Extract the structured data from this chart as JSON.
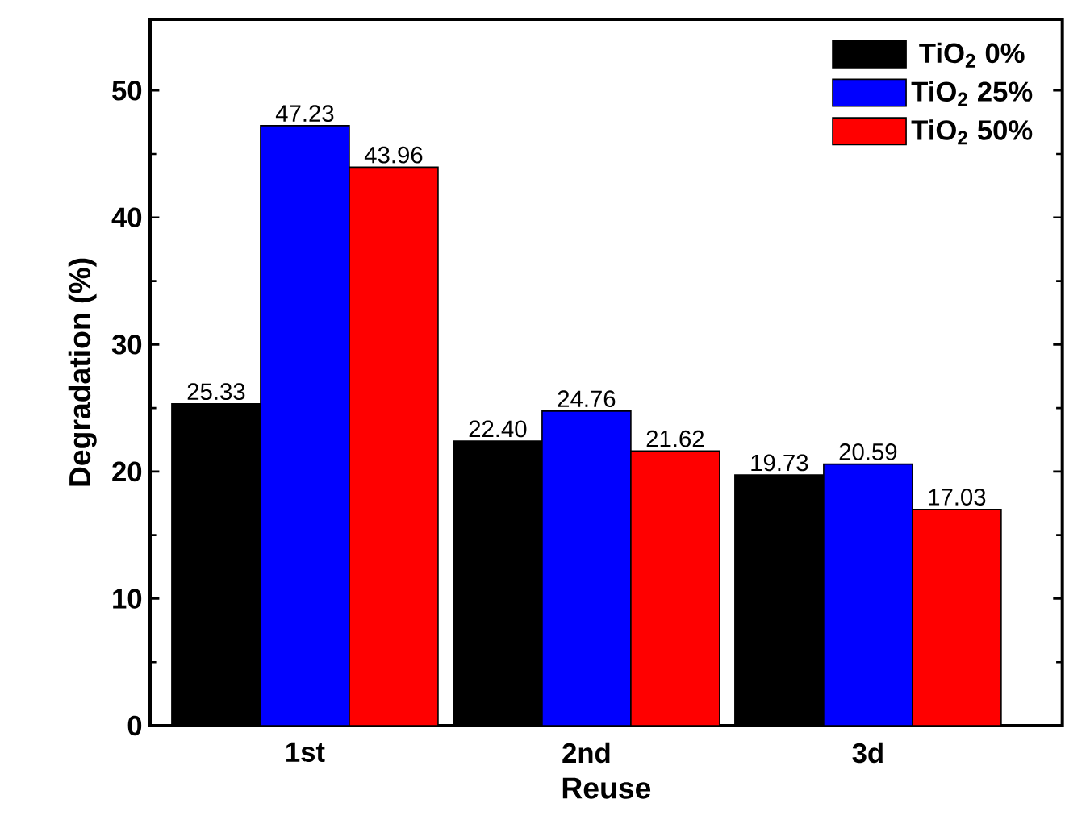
{
  "chart_data": {
    "type": "bar",
    "xlabel": "Reuse",
    "ylabel": "Degradation (%)",
    "categories": [
      "1st",
      "2nd",
      "3d"
    ],
    "series": [
      {
        "name": "TiO$_{2}$ 0%",
        "color": "#000000",
        "values": [
          25.33,
          22.4,
          19.73
        ],
        "value_labels": [
          "25.33",
          "22.40",
          "19.73"
        ]
      },
      {
        "name": "TiO$_{2}$ 25%",
        "color": "#0000ff",
        "values": [
          47.23,
          24.76,
          20.59
        ],
        "value_labels": [
          "47.23",
          "24.76",
          "20.59"
        ]
      },
      {
        "name": "TiO$_{2}$ 50%",
        "color": "#ff0000",
        "values": [
          43.96,
          21.62,
          17.03
        ],
        "value_labels": [
          "43.96",
          "21.62",
          "17.03"
        ]
      }
    ],
    "ylim": [
      0,
      55.6
    ],
    "yticks": [
      0,
      10,
      20,
      30,
      40,
      50
    ],
    "legend": "top right"
  }
}
